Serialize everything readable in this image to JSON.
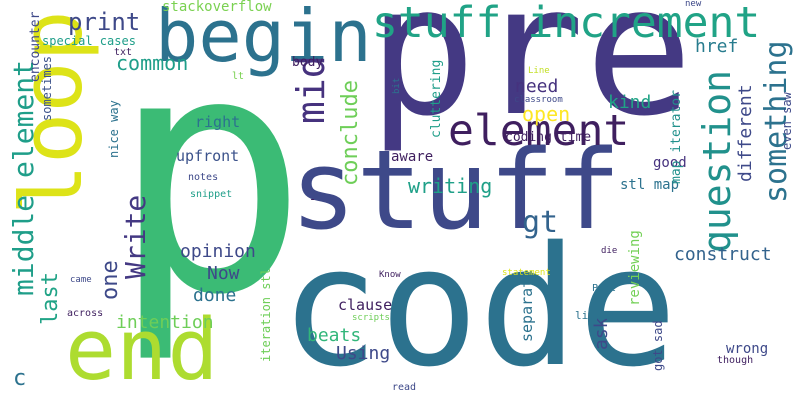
{
  "words": [
    {
      "text": "p",
      "color": "#3bbb75"
    },
    {
      "text": "pre",
      "color": "#443983"
    },
    {
      "text": "code",
      "color": "#2c728e"
    },
    {
      "text": "stuff",
      "color": "#3e4989"
    },
    {
      "text": "begin",
      "color": "#2c728e"
    },
    {
      "text": "loop",
      "color": "#dde318"
    },
    {
      "text": "end",
      "color": "#addc30"
    },
    {
      "text": "stuff increment",
      "color": "#20a386"
    },
    {
      "text": "element",
      "color": "#3f1f5f"
    },
    {
      "text": "mid",
      "color": "#46327e"
    },
    {
      "text": "middle element",
      "color": "#1f9e89"
    },
    {
      "text": "question",
      "color": "#21918c"
    },
    {
      "text": "something",
      "color": "#2c728e"
    },
    {
      "text": "conclude",
      "color": "#6ece58"
    },
    {
      "text": "Write",
      "color": "#443983"
    },
    {
      "text": "writing",
      "color": "#1fa088"
    },
    {
      "text": "print",
      "color": "#3e4989"
    },
    {
      "text": "common",
      "color": "#1f9e89"
    },
    {
      "text": "gt",
      "color": "#33638d"
    },
    {
      "text": "last",
      "color": "#20a386"
    },
    {
      "text": "one",
      "color": "#3e4989"
    },
    {
      "text": "opinion",
      "color": "#3e4989"
    },
    {
      "text": "Now",
      "color": "#3e4989"
    },
    {
      "text": "done",
      "color": "#2c728e"
    },
    {
      "text": "intention",
      "color": "#6ece58"
    },
    {
      "text": "construct",
      "color": "#33638d"
    },
    {
      "text": "kind",
      "color": "#20a386"
    },
    {
      "text": "open",
      "color": "#fde725"
    },
    {
      "text": "need",
      "color": "#46327e"
    },
    {
      "text": "href",
      "color": "#287c8e"
    },
    {
      "text": "different",
      "color": "#3e4989"
    },
    {
      "text": "stackoverflow",
      "color": "#7ad151"
    },
    {
      "text": "right",
      "color": "#2c728e"
    },
    {
      "text": "upfront",
      "color": "#3b528b"
    },
    {
      "text": "beats",
      "color": "#32b67a"
    },
    {
      "text": "Using",
      "color": "#3e4989"
    },
    {
      "text": "clause",
      "color": "#3f1f5f"
    },
    {
      "text": "separate",
      "color": "#2c728e"
    },
    {
      "text": "ask",
      "color": "#3e4989"
    },
    {
      "text": "reviewing",
      "color": "#73d056"
    },
    {
      "text": "c",
      "color": "#2c728e"
    },
    {
      "text": "aware",
      "color": "#3f1f5f"
    },
    {
      "text": "stl map",
      "color": "#2c728e"
    },
    {
      "text": "good",
      "color": "#46327e"
    },
    {
      "text": "wrong",
      "color": "#3e4989"
    },
    {
      "text": "body",
      "color": "#3f1f5f"
    },
    {
      "text": "cluttering",
      "color": "#1f9e89"
    },
    {
      "text": "coding time",
      "color": "#3f1f5f"
    },
    {
      "text": "map iterator",
      "color": "#21918c"
    },
    {
      "text": "encounter",
      "color": "#3e4989"
    },
    {
      "text": "special cases",
      "color": "#1f9e89"
    },
    {
      "text": "sometimes",
      "color": "#3b528b"
    },
    {
      "text": "nice way",
      "color": "#2c728e"
    },
    {
      "text": "notes",
      "color": "#3e4989"
    },
    {
      "text": "snippet",
      "color": "#1f9e89"
    },
    {
      "text": "got sad",
      "color": "#3e4989"
    },
    {
      "text": "even saw",
      "color": "#3e4989"
    },
    {
      "text": "iteration stl",
      "color": "#6ece58"
    },
    {
      "text": "little",
      "color": "#2c728e"
    },
    {
      "text": "though",
      "color": "#3f1f5f"
    },
    {
      "text": "txt",
      "color": "#3f1f5f"
    },
    {
      "text": "lt",
      "color": "#7ad151"
    },
    {
      "text": "new",
      "color": "#3e4989"
    },
    {
      "text": "Line",
      "color": "#c2df23"
    },
    {
      "text": "classroom",
      "color": "#3e4989"
    },
    {
      "text": "bit",
      "color": "#2c728e"
    },
    {
      "text": "came",
      "color": "#3e4989"
    },
    {
      "text": "across",
      "color": "#3f1f5f"
    },
    {
      "text": "scripts",
      "color": "#6ece58"
    },
    {
      "text": "Know",
      "color": "#3f1f5f"
    },
    {
      "text": "statement",
      "color": "#dde318"
    },
    {
      "text": "Perl",
      "color": "#2c728e"
    },
    {
      "text": "die",
      "color": "#3f1f5f"
    },
    {
      "text": "read",
      "color": "#3e4989"
    },
    {
      "text": "-",
      "color": "#3f1f5f"
    }
  ]
}
